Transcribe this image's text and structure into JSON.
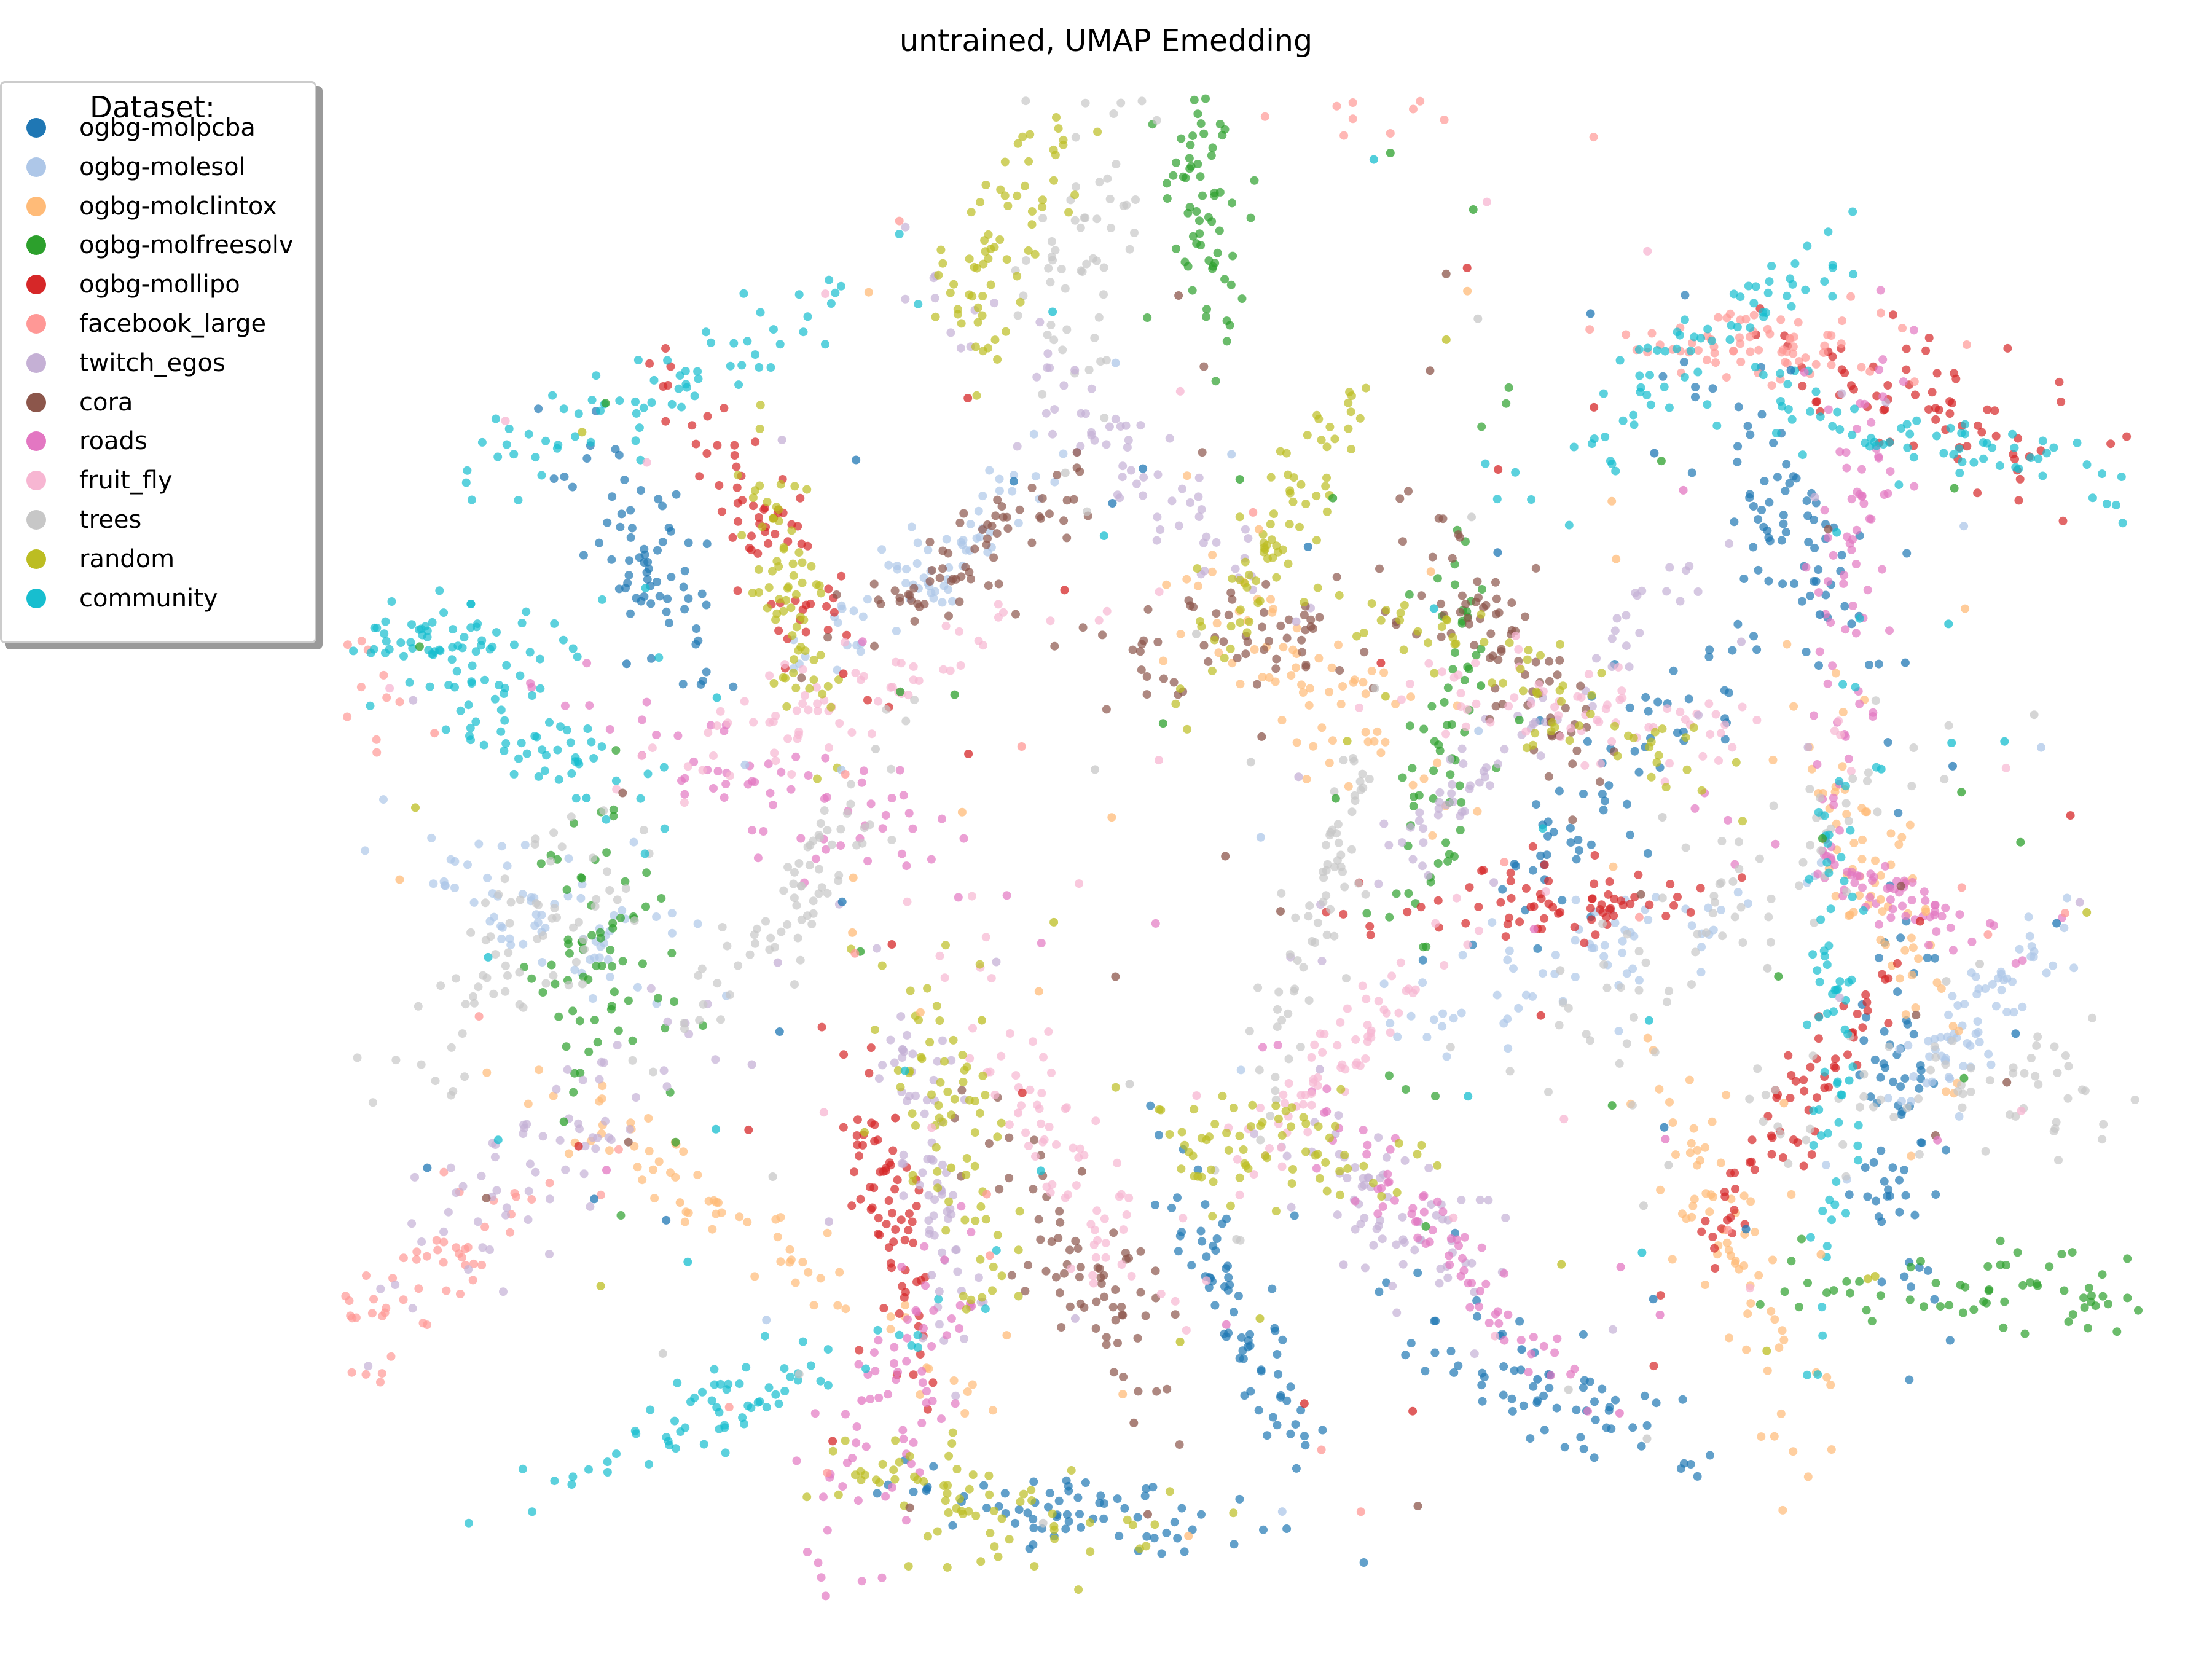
{
  "chart_data": {
    "type": "scatter",
    "title": "untrained, UMAP Emedding",
    "xlabel": "",
    "ylabel": "",
    "axes_visible": false,
    "grid": false,
    "legend": {
      "title": "Dataset:",
      "placement": "top-left"
    },
    "series": [
      {
        "name": "ogbg-molpcba",
        "color": "#1f77b4",
        "clusters": [
          [
            -4.5,
            2.3
          ],
          [
            0.3,
            -3.8
          ],
          [
            3.4,
            0.6
          ],
          [
            4.6,
            2.6
          ],
          [
            -1.0,
            -5.3
          ],
          [
            2.8,
            -4.4
          ],
          [
            5.5,
            -2.2
          ]
        ]
      },
      {
        "name": "ogbg-molesol",
        "color": "#aec7e8",
        "clusters": [
          [
            -5.2,
            -0.6
          ],
          [
            -2.3,
            2.1
          ],
          [
            3.1,
            -0.9
          ],
          [
            6.1,
            -1.4
          ]
        ]
      },
      {
        "name": "ogbg-molclintox",
        "color": "#ffbb78",
        "clusters": [
          [
            -3.6,
            -3.1
          ],
          [
            0.9,
            1.2
          ],
          [
            4.2,
            -3.2
          ],
          [
            5.4,
            -0.5
          ]
        ]
      },
      {
        "name": "ogbg-molfreesolv",
        "color": "#2ca02c",
        "clusters": [
          [
            -4.8,
            -0.8
          ],
          [
            0.0,
            5.1
          ],
          [
            1.9,
            0.7
          ],
          [
            6.5,
            -3.6
          ]
        ]
      },
      {
        "name": "ogbg-mollipo",
        "color": "#d62728",
        "clusters": [
          [
            -3.5,
            2.5
          ],
          [
            2.6,
            -0.5
          ],
          [
            5.9,
            3.5
          ],
          [
            -2.5,
            -3.0
          ],
          [
            4.7,
            -2.1
          ]
        ]
      },
      {
        "name": "facebook_large",
        "color": "#ff9896",
        "clusters": [
          [
            -6.3,
            -3.5
          ],
          [
            2.9,
            6.2
          ],
          [
            -7.1,
            0.1
          ],
          [
            4.5,
            3.9
          ]
        ]
      },
      {
        "name": "twitch_egos",
        "color": "#c5b0d5",
        "clusters": [
          [
            -0.8,
            3.2
          ],
          [
            2.5,
            0.8
          ],
          [
            -2.2,
            -2.5
          ],
          [
            -5.4,
            -2.6
          ],
          [
            1.5,
            -3.0
          ]
        ]
      },
      {
        "name": "cora",
        "color": "#8c564b",
        "clusters": [
          [
            -1.0,
            -3.3
          ],
          [
            0.2,
            1.6
          ],
          [
            2.4,
            1.5
          ],
          [
            -1.9,
            2.3
          ]
        ]
      },
      {
        "name": "roads",
        "color": "#e377c2",
        "clusters": [
          [
            -3.4,
            0.4
          ],
          [
            1.8,
            -3.1
          ],
          [
            5.2,
            2.5
          ],
          [
            5.4,
            -0.4
          ],
          [
            -2.5,
            -4.6
          ]
        ]
      },
      {
        "name": "fruit_fly",
        "color": "#f7b6d2",
        "clusters": [
          [
            -1.2,
            -2.3
          ],
          [
            1.1,
            -1.7
          ],
          [
            -2.9,
            1.1
          ],
          [
            3.3,
            1.0
          ]
        ]
      },
      {
        "name": "trees",
        "color": "#c7c7c7",
        "clusters": [
          [
            -3.3,
            -0.5
          ],
          [
            0.9,
            -0.6
          ],
          [
            4.0,
            -0.6
          ],
          [
            -5.4,
            -0.9
          ],
          [
            6.1,
            -2.0
          ],
          [
            -1.0,
            5.0
          ]
        ]
      },
      {
        "name": "random",
        "color": "#bcbd22",
        "clusters": [
          [
            -1.6,
            4.8
          ],
          [
            0.6,
            2.5
          ],
          [
            2.6,
            1.2
          ],
          [
            -3.3,
            2.0
          ],
          [
            -2.0,
            -2.3
          ],
          [
            0.5,
            -2.4
          ],
          [
            -1.8,
            -5.2
          ]
        ]
      },
      {
        "name": "community",
        "color": "#17becf",
        "clusters": [
          [
            -6.2,
            1.6
          ],
          [
            -4.3,
            3.6
          ],
          [
            3.9,
            3.9
          ],
          [
            5.7,
            3.2
          ],
          [
            -3.6,
            -4.4
          ],
          [
            5.0,
            -1.4
          ],
          [
            -5.5,
            1.0
          ]
        ]
      }
    ]
  }
}
